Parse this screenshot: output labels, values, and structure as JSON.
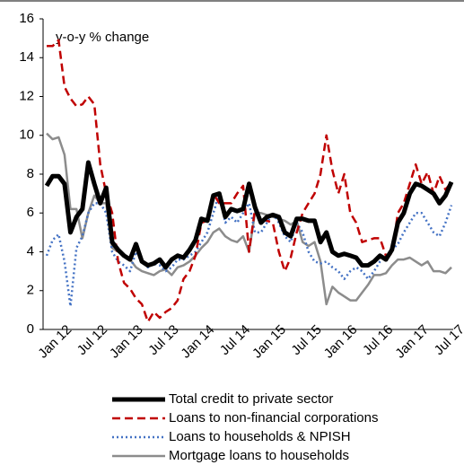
{
  "chart_data": {
    "type": "line",
    "annotation": "y-o-y % change",
    "categories": [
      "Jan 12",
      null,
      null,
      null,
      null,
      null,
      "Jul 12",
      null,
      null,
      null,
      null,
      null,
      "Jan 13",
      null,
      null,
      null,
      null,
      null,
      "Jul 13",
      null,
      null,
      null,
      null,
      null,
      "Jan 14",
      null,
      null,
      null,
      null,
      null,
      "Jul 14",
      null,
      null,
      null,
      null,
      null,
      "Jan 15",
      null,
      null,
      null,
      null,
      null,
      "Jul 15",
      null,
      null,
      null,
      null,
      null,
      "Jan 16",
      null,
      null,
      null,
      null,
      null,
      "Jul 16",
      null,
      null,
      null,
      null,
      null,
      "Jan 17",
      null,
      null,
      null,
      null,
      null,
      "Jul 17",
      null,
      null
    ],
    "series": [
      {
        "name": "Total credit to private sector",
        "color": "#000000",
        "style": "solid",
        "width": 5,
        "values": [
          7.4,
          7.9,
          7.9,
          7.5,
          5.0,
          5.8,
          6.2,
          8.6,
          7.5,
          6.5,
          7.3,
          4.5,
          4.1,
          3.8,
          3.6,
          4.4,
          3.5,
          3.3,
          3.4,
          3.6,
          3.2,
          3.6,
          3.8,
          3.7,
          4.1,
          4.6,
          5.7,
          5.6,
          6.9,
          7.0,
          5.8,
          6.2,
          6.1,
          6.2,
          7.5,
          6.3,
          5.5,
          5.8,
          5.9,
          5.8,
          5.0,
          4.8,
          5.7,
          5.7,
          5.6,
          5.6,
          4.5,
          5.0,
          4.0,
          3.8,
          3.9,
          3.8,
          3.7,
          3.3,
          3.3,
          3.5,
          3.8,
          3.6,
          4.1,
          5.5,
          6.0,
          7.0,
          7.5,
          7.4,
          7.2,
          7.0,
          6.5,
          6.9,
          7.6
        ]
      },
      {
        "name": "Loans to non-financial corporations",
        "color": "#c00000",
        "style": "dashed",
        "width": 2.5,
        "values": [
          14.6,
          14.6,
          14.9,
          12.5,
          11.9,
          11.5,
          11.6,
          12.0,
          11.6,
          8.5,
          7.0,
          6.0,
          3.5,
          2.4,
          2.1,
          1.6,
          1.3,
          0.4,
          0.9,
          0.6,
          0.9,
          1.1,
          1.5,
          2.6,
          3.0,
          3.8,
          5.5,
          5.6,
          7.0,
          6.5,
          6.5,
          6.5,
          7.0,
          7.4,
          4.0,
          6.2,
          5.7,
          5.6,
          5.5,
          4.0,
          3.0,
          3.7,
          5.0,
          6.0,
          6.5,
          7.0,
          8.0,
          10.0,
          8.2,
          7.0,
          8.0,
          6.0,
          5.5,
          4.5,
          4.6,
          4.7,
          4.7,
          3.8,
          3.9,
          6.0,
          6.5,
          7.5,
          8.5,
          7.5,
          8.1,
          7.0,
          7.9,
          7.2,
          7.6
        ]
      },
      {
        "name": "Loans to households & NPISH",
        "color": "#4472c4",
        "style": "dotted",
        "width": 2.5,
        "values": [
          3.8,
          4.6,
          4.9,
          3.5,
          1.2,
          4.2,
          4.8,
          6.0,
          6.5,
          6.5,
          6.0,
          4.0,
          3.5,
          3.3,
          3.0,
          4.0,
          3.5,
          3.2,
          3.4,
          3.3,
          3.0,
          3.2,
          3.6,
          3.6,
          3.8,
          4.0,
          4.5,
          5.0,
          6.0,
          7.0,
          5.5,
          5.8,
          5.5,
          6.0,
          6.5,
          5.0,
          5.0,
          5.5,
          6.0,
          5.5,
          4.8,
          4.5,
          5.5,
          5.0,
          4.0,
          3.5,
          3.4,
          3.5,
          3.2,
          3.0,
          2.6,
          3.0,
          3.2,
          3.0,
          2.6,
          3.0,
          3.5,
          3.8,
          4.1,
          4.4,
          5.0,
          5.5,
          6.0,
          6.0,
          5.5,
          5.0,
          4.8,
          5.5,
          6.4
        ]
      },
      {
        "name": "Mortgage loans to households",
        "color": "#8c8c8c",
        "style": "solid",
        "width": 2.5,
        "values": [
          10.1,
          9.8,
          9.9,
          9.0,
          6.2,
          6.2,
          4.7,
          6.0,
          6.9,
          6.5,
          6.5,
          4.2,
          4.0,
          3.8,
          3.6,
          3.2,
          3.0,
          2.9,
          2.8,
          3.0,
          3.1,
          2.8,
          3.2,
          3.3,
          3.5,
          3.8,
          4.2,
          4.5,
          5.0,
          5.2,
          4.8,
          4.6,
          4.5,
          4.8,
          4.0,
          6.0,
          6.0,
          5.9,
          5.8,
          5.7,
          5.6,
          5.4,
          5.6,
          4.5,
          4.3,
          4.5,
          3.5,
          1.3,
          2.2,
          1.9,
          1.7,
          1.5,
          1.5,
          1.9,
          2.3,
          2.8,
          2.8,
          2.9,
          3.3,
          3.6,
          3.6,
          3.7,
          3.5,
          3.3,
          3.5,
          3.0,
          3.0,
          2.9,
          3.2
        ]
      }
    ],
    "ylim": [
      0,
      16
    ],
    "yticks": [
      0,
      2,
      4,
      6,
      8,
      10,
      12,
      14,
      16
    ],
    "grid": false
  }
}
